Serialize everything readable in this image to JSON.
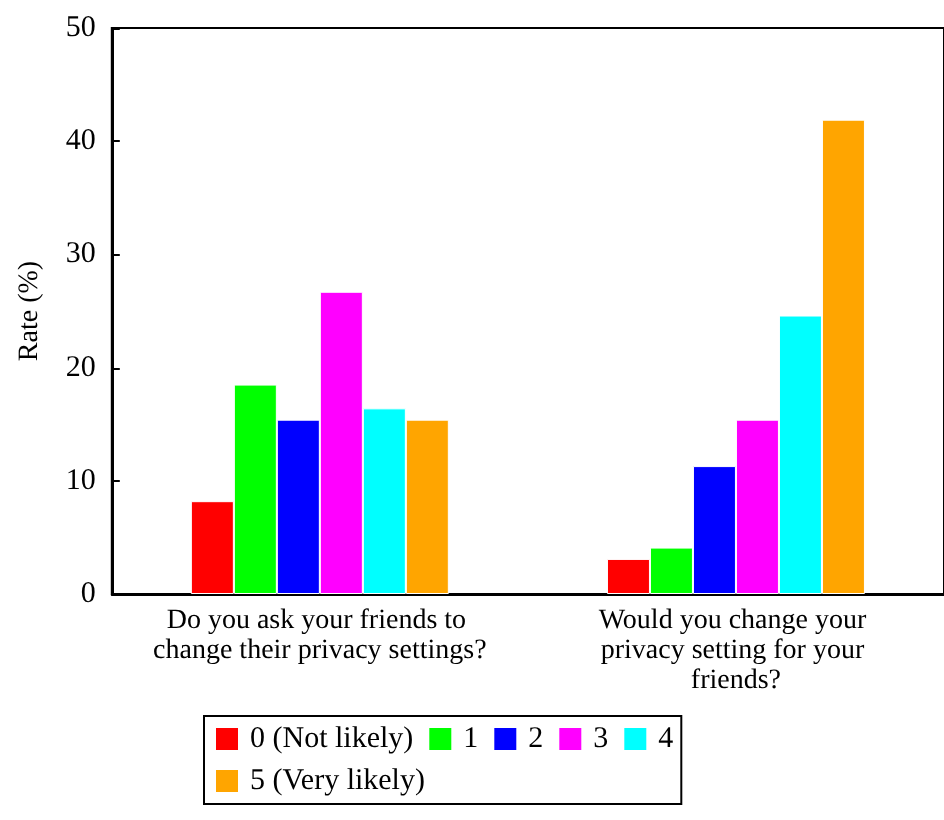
{
  "chart_data": {
    "type": "bar",
    "ylabel": "Rate (%)",
    "categories": [
      "Do you ask your friends to change their privacy settings?",
      "Would you change your privacy setting for your friends?"
    ],
    "series": [
      {
        "name": "0 (Not likely)",
        "color": "#ff0000",
        "values": [
          8.2,
          3.1
        ]
      },
      {
        "name": "1",
        "color": "#00ff00",
        "values": [
          18.5,
          4.1
        ]
      },
      {
        "name": "2",
        "color": "#0000ff",
        "values": [
          15.4,
          11.3
        ]
      },
      {
        "name": "3",
        "color": "#ff00ff",
        "values": [
          26.7,
          15.4
        ]
      },
      {
        "name": "4",
        "color": "#00ffff",
        "values": [
          16.4,
          24.6
        ]
      },
      {
        "name": "5 (Very likely)",
        "color": "#ffa500",
        "values": [
          15.4,
          41.9
        ]
      }
    ],
    "ylim": [
      0,
      50
    ],
    "yticks": [
      0,
      10,
      20,
      30,
      40,
      50
    ],
    "grid": false,
    "legend": "bottom"
  }
}
